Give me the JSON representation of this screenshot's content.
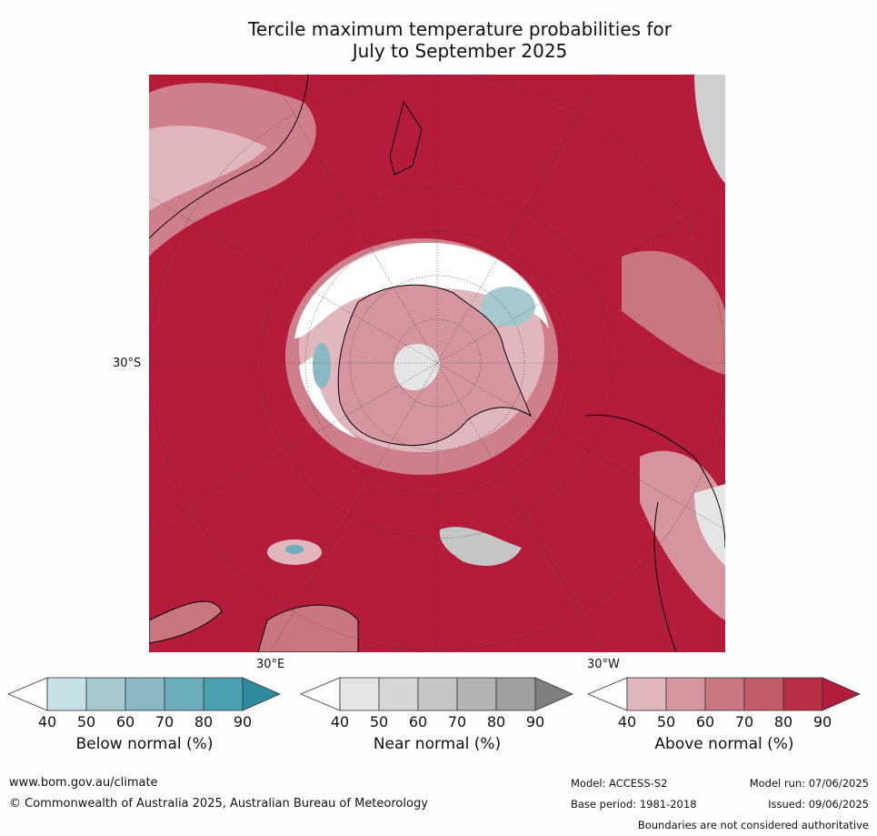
{
  "title": {
    "line1": "Tercile maximum temperature probabilities for",
    "line2": "July to September 2025"
  },
  "map": {
    "lat_label": "30°S",
    "lon_label_east": "30°E",
    "lon_label_west": "30°W",
    "dominant_color": "#b51b3a"
  },
  "colorbars": [
    {
      "label": "Below normal (%)",
      "ticks": [
        "40",
        "50",
        "60",
        "70",
        "80",
        "90"
      ],
      "colors": [
        "#ffffff",
        "#c8e1e7",
        "#a6c9cf",
        "#8ab8c3",
        "#6aadbb",
        "#4aa0b0",
        "#2d8a9f"
      ]
    },
    {
      "label": "Near normal (%)",
      "ticks": [
        "40",
        "50",
        "60",
        "70",
        "80",
        "90"
      ],
      "colors": [
        "#ffffff",
        "#e5e5e5",
        "#d6d6d6",
        "#c6c6c6",
        "#b4b4b4",
        "#a0a0a0",
        "#7e7e7e"
      ]
    },
    {
      "label": "Above normal (%)",
      "ticks": [
        "40",
        "50",
        "60",
        "70",
        "80",
        "90"
      ],
      "colors": [
        "#ffffff",
        "#e1b7bd",
        "#d5959f",
        "#c97680",
        "#c35c6a",
        "#b92f48",
        "#b01c3a"
      ]
    }
  ],
  "footer": {
    "website": "www.bom.gov.au/climate",
    "copyright": "© Commonwealth of Australia 2025, Australian Bureau of Meteorology",
    "model": "Model: ACCESS-S2",
    "model_run": "Model run: 07/06/2025",
    "base_period": "Base period: 1981-2018",
    "issued": "Issued: 09/06/2025",
    "disclaimer": "Boundaries are not considered authoritative"
  }
}
